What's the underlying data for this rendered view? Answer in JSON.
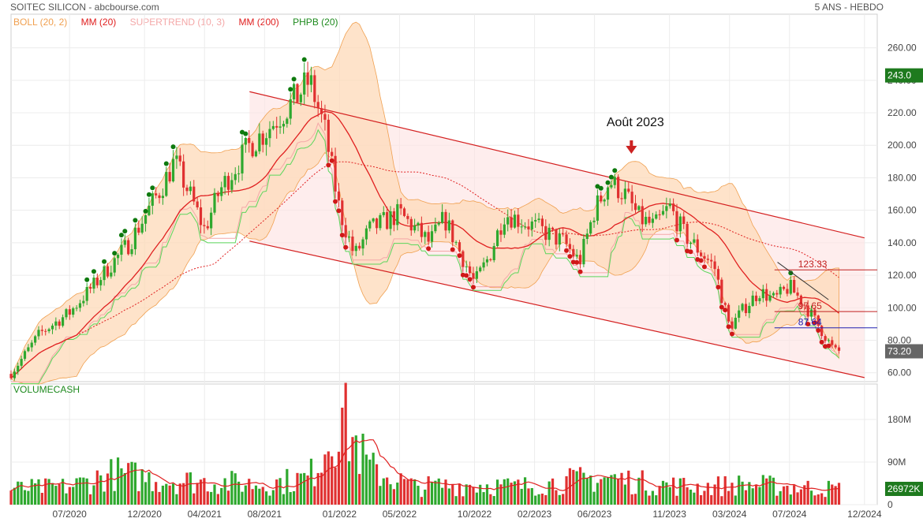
{
  "header": {
    "left": "SOITEC SILICON - abcbourse.com",
    "right": "5 ANS - HEBDO"
  },
  "legend": [
    {
      "label": "BOLL (20, 2)",
      "color": "#f0a050"
    },
    {
      "label": "MM (20)",
      "color": "#e02020"
    },
    {
      "label": "SUPERTREND (10, 3)",
      "color": "#f4a8a8"
    },
    {
      "label": "MM (200)",
      "color": "#e02020"
    },
    {
      "label": "PHPB (20)",
      "color": "#1e8a1e"
    }
  ],
  "colors": {
    "up": "#2ea82e",
    "down": "#e03030",
    "dot_up": "#0e7a0e",
    "dot_down": "#d01818",
    "boll_fill": "#fdd9b8",
    "channel_fill": "#fde4e4",
    "channel_line": "#d42020",
    "mm20": "#e02020",
    "supertrend": "#f4a8a8",
    "phpb": "#5cd65c",
    "accent_box": "#1e7a1e"
  },
  "chart_data": {
    "type": "candlestick",
    "title": "SOITEC SILICON",
    "period": "5 ANS - HEBDO",
    "x_ticks": [
      "07/2020",
      "12/2020",
      "04/2021",
      "08/2021",
      "01/2022",
      "05/2022",
      "10/2022",
      "02/2023",
      "06/2023",
      "11/2023",
      "03/2024",
      "07/2024",
      "12/2024"
    ],
    "y_ticks": [
      "60.00",
      "80.00",
      "100.00",
      "120.00",
      "140.00",
      "160.00",
      "180.00",
      "200.00",
      "220.00",
      "240.00",
      "260.00"
    ],
    "ylim": [
      55,
      270
    ],
    "last_price": "73.20",
    "highlight_value": "243.0",
    "annotation": {
      "text": "Août 2023",
      "x": "2023-08"
    },
    "levels": [
      {
        "label": "123.33",
        "value": 123.33,
        "color": "#c02020"
      },
      {
        "label": "97.65",
        "value": 97.65,
        "color": "#c02020"
      },
      {
        "label": "87.64",
        "value": 87.64,
        "color": "#2020b0"
      }
    ],
    "close_anchors": [
      [
        "2020-03",
        58
      ],
      [
        "2020-05",
        84
      ],
      [
        "2020-07",
        97
      ],
      [
        "2020-09",
        118
      ],
      [
        "2020-11",
        140
      ],
      [
        "2021-01",
        172
      ],
      [
        "2021-02",
        190
      ],
      [
        "2021-03",
        170
      ],
      [
        "2021-04",
        148
      ],
      [
        "2021-05",
        172
      ],
      [
        "2021-07",
        200
      ],
      [
        "2021-08",
        208
      ],
      [
        "2021-10",
        228
      ],
      [
        "2021-11",
        240
      ],
      [
        "2021-12",
        210
      ],
      [
        "2022-01",
        160
      ],
      [
        "2022-02",
        132
      ],
      [
        "2022-03",
        148
      ],
      [
        "2022-05",
        158
      ],
      [
        "2022-07",
        140
      ],
      [
        "2022-08",
        155
      ],
      [
        "2022-10",
        115
      ],
      [
        "2022-11",
        132
      ],
      [
        "2022-12",
        158
      ],
      [
        "2023-02",
        150
      ],
      [
        "2023-04",
        140
      ],
      [
        "2023-05",
        128
      ],
      [
        "2023-06",
        160
      ],
      [
        "2023-07",
        178
      ],
      [
        "2023-08",
        170
      ],
      [
        "2023-09",
        155
      ],
      [
        "2023-10",
        150
      ],
      [
        "2023-11",
        162
      ],
      [
        "2023-12",
        145
      ],
      [
        "2024-02",
        125
      ],
      [
        "2024-03",
        88
      ],
      [
        "2024-04",
        100
      ],
      [
        "2024-05",
        110
      ],
      [
        "2024-06",
        105
      ],
      [
        "2024-07",
        113
      ],
      [
        "2024-08",
        102
      ],
      [
        "2024-09",
        88
      ],
      [
        "2024-10",
        73.2
      ]
    ],
    "channel": {
      "upper": [
        [
          "2021-07",
          233
        ],
        [
          "2024-12",
          143
        ]
      ],
      "lower": [
        [
          "2021-07",
          141
        ],
        [
          "2024-12",
          57
        ]
      ]
    },
    "volume": {
      "label": "VOLUMECASH",
      "y_ticks": [
        "0",
        "90M",
        "180M"
      ],
      "ylim": [
        0,
        230
      ],
      "last_value": "26972K",
      "anchors": [
        [
          "2020-03",
          35
        ],
        [
          "2020-07",
          40
        ],
        [
          "2020-10",
          70
        ],
        [
          "2021-01",
          55
        ],
        [
          "2021-05",
          50
        ],
        [
          "2021-08",
          45
        ],
        [
          "2021-11",
          60
        ],
        [
          "2022-01",
          200
        ],
        [
          "2022-03",
          80
        ],
        [
          "2022-06",
          40
        ],
        [
          "2022-10",
          45
        ],
        [
          "2023-01",
          40
        ],
        [
          "2023-05",
          55
        ],
        [
          "2023-07",
          60
        ],
        [
          "2023-10",
          45
        ],
        [
          "2024-01",
          40
        ],
        [
          "2024-04",
          45
        ],
        [
          "2024-07",
          40
        ],
        [
          "2024-10",
          35
        ]
      ]
    }
  }
}
